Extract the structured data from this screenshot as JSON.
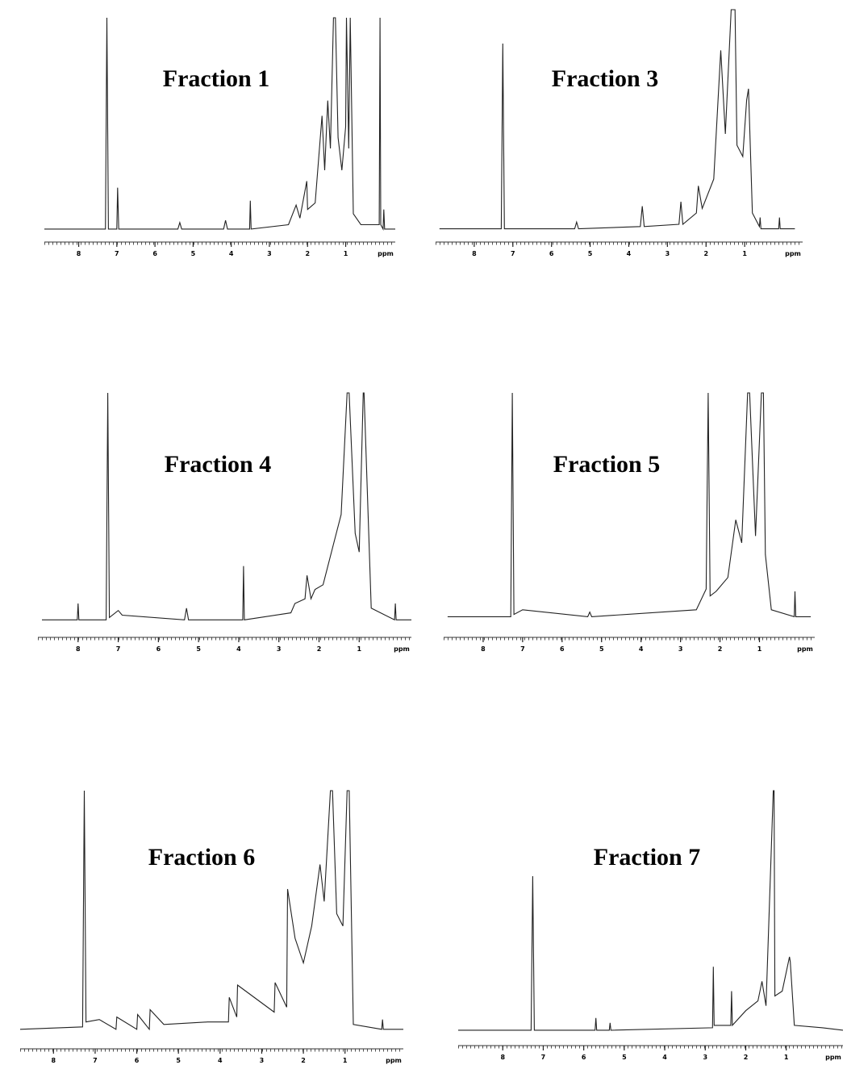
{
  "chart_data": [
    {
      "type": "line",
      "title": "Fraction 1",
      "x_label": "ppm",
      "color": "#222222",
      "x": [
        8.9,
        7.3,
        7.26,
        7.22,
        7.0,
        6.98,
        6.95,
        5.4,
        5.35,
        5.3,
        4.2,
        4.15,
        4.1,
        3.52,
        3.5,
        3.48,
        2.5,
        2.3,
        2.2,
        2.02,
        2.0,
        1.8,
        1.62,
        1.55,
        1.47,
        1.4,
        1.32,
        1.27,
        1.2,
        1.1,
        1.0,
        0.98,
        0.92,
        0.88,
        0.8,
        0.6,
        0.12,
        0.1,
        0.08,
        0.02,
        0.0,
        -0.02,
        -0.3
      ],
      "values": [
        3,
        3,
        100,
        3,
        3,
        22,
        3,
        3,
        6,
        3,
        3,
        7,
        3,
        3,
        16,
        3,
        5,
        14,
        8,
        25,
        12,
        15,
        55,
        30,
        62,
        40,
        100,
        100,
        45,
        30,
        50,
        100,
        40,
        100,
        10,
        5,
        5,
        100,
        5,
        3,
        12,
        3,
        3
      ],
      "xlim": [
        8.9,
        -0.3
      ],
      "ylim": [
        0,
        100
      ],
      "xticks": [
        8,
        7,
        6,
        5,
        4,
        3,
        2,
        1
      ]
    },
    {
      "type": "line",
      "title": "Fraction 3",
      "x_label": "ppm",
      "color": "#222222",
      "x": [
        8.9,
        7.3,
        7.26,
        7.22,
        5.4,
        5.35,
        5.3,
        3.7,
        3.65,
        3.6,
        2.7,
        2.65,
        2.6,
        2.25,
        2.2,
        2.1,
        1.8,
        1.62,
        1.5,
        1.35,
        1.3,
        1.25,
        1.2,
        1.05,
        0.95,
        0.9,
        0.8,
        0.62,
        0.6,
        0.58,
        0.12,
        0.1,
        0.08,
        -0.3
      ],
      "values": [
        3,
        3,
        85,
        3,
        3,
        6,
        3,
        4,
        13,
        4,
        5,
        15,
        5,
        10,
        22,
        12,
        25,
        82,
        45,
        100,
        100,
        100,
        40,
        35,
        60,
        65,
        10,
        4,
        8,
        3,
        3,
        8,
        3,
        3
      ],
      "xlim": [
        9,
        -0.5
      ],
      "ylim": [
        0,
        100
      ],
      "xticks": [
        8,
        7,
        6,
        5,
        4,
        3,
        2,
        1
      ]
    },
    {
      "type": "line",
      "title": "Fraction 4",
      "x_label": "ppm",
      "color": "#222222",
      "x": [
        8.9,
        8.02,
        8.0,
        7.98,
        7.3,
        7.26,
        7.22,
        7.0,
        6.9,
        5.35,
        5.3,
        5.25,
        3.9,
        3.88,
        3.86,
        2.7,
        2.6,
        2.35,
        2.3,
        2.2,
        2.1,
        1.9,
        1.6,
        1.45,
        1.3,
        1.25,
        1.1,
        1.0,
        0.9,
        0.88,
        0.7,
        0.12,
        0.1,
        0.08,
        -0.3
      ],
      "values": [
        3,
        3,
        10,
        3,
        3,
        100,
        4,
        7,
        5,
        3,
        8,
        3,
        3,
        26,
        3,
        6,
        10,
        12,
        22,
        12,
        16,
        18,
        38,
        48,
        100,
        100,
        40,
        32,
        100,
        100,
        8,
        3,
        10,
        3,
        3
      ],
      "xlim": [
        9,
        -0.3
      ],
      "ylim": [
        0,
        100
      ],
      "xticks": [
        8,
        7,
        6,
        5,
        4,
        3,
        2,
        1
      ]
    },
    {
      "type": "line",
      "title": "Fraction 5",
      "x_label": "ppm",
      "color": "#222222",
      "x": [
        8.9,
        7.3,
        7.26,
        7.22,
        7.0,
        5.35,
        5.3,
        5.25,
        2.6,
        2.35,
        2.3,
        2.25,
        2.1,
        1.8,
        1.6,
        1.45,
        1.3,
        1.25,
        1.1,
        0.95,
        0.9,
        0.85,
        0.7,
        0.12,
        0.1,
        0.08,
        -0.3
      ],
      "values": [
        3,
        3,
        100,
        4,
        6,
        3,
        5,
        3,
        6,
        15,
        100,
        12,
        14,
        20,
        45,
        35,
        100,
        100,
        38,
        100,
        100,
        30,
        6,
        3,
        14,
        3,
        3
      ],
      "xlim": [
        9,
        -0.4
      ],
      "ylim": [
        0,
        100
      ],
      "xticks": [
        8,
        7,
        6,
        5,
        4,
        3,
        2,
        1
      ]
    },
    {
      "type": "line",
      "title": "Fraction 6",
      "x_label": "ppm",
      "color": "#222222",
      "x": [
        8.8,
        7.3,
        7.26,
        7.22,
        6.9,
        6.5,
        6.48,
        6.0,
        5.98,
        5.7,
        5.68,
        5.35,
        4.3,
        3.8,
        3.78,
        3.6,
        3.58,
        2.7,
        2.68,
        2.4,
        2.38,
        2.2,
        2.0,
        1.8,
        1.6,
        1.5,
        1.35,
        1.3,
        1.2,
        1.05,
        0.95,
        0.9,
        0.8,
        0.12,
        0.1,
        0.08,
        -0.4
      ],
      "values": [
        3,
        4,
        100,
        6,
        7,
        3,
        8,
        3,
        9,
        3,
        11,
        5,
        6,
        6,
        16,
        8,
        21,
        10,
        22,
        12,
        60,
        40,
        30,
        45,
        70,
        55,
        100,
        100,
        50,
        45,
        100,
        100,
        5,
        3,
        7,
        3,
        3
      ],
      "xlim": [
        8.8,
        -0.4
      ],
      "ylim": [
        0,
        100
      ],
      "xticks": [
        8,
        7,
        6,
        5,
        4,
        3,
        2,
        1
      ]
    },
    {
      "type": "line",
      "title": "Fraction 7",
      "x_label": "ppm",
      "color": "#222222",
      "x": [
        9.1,
        7.3,
        7.26,
        7.22,
        5.72,
        5.7,
        5.68,
        5.37,
        5.35,
        5.33,
        2.82,
        2.8,
        2.78,
        2.37,
        2.35,
        2.33,
        2.0,
        1.7,
        1.6,
        1.5,
        1.32,
        1.3,
        1.28,
        1.1,
        0.92,
        0.9,
        0.8,
        0.1,
        -0.4
      ],
      "values": [
        2,
        2,
        65,
        2,
        2,
        7,
        2,
        2,
        5,
        2,
        3,
        28,
        4,
        4,
        18,
        4,
        10,
        14,
        22,
        12,
        100,
        100,
        16,
        18,
        32,
        30,
        4,
        3,
        2
      ],
      "xlim": [
        9.1,
        -0.4
      ],
      "ylim": [
        0,
        100
      ],
      "xticks": [
        8,
        7,
        6,
        5,
        4,
        3,
        2,
        1
      ]
    }
  ]
}
